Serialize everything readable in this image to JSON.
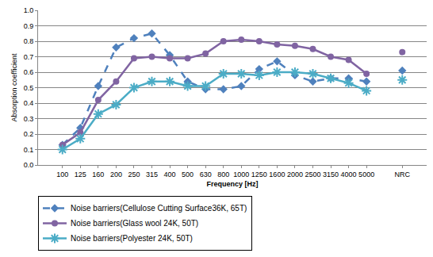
{
  "chart_data": {
    "type": "line",
    "x_label": "Frequency [Hz]",
    "y_label": "Absorption coefficient",
    "categories": [
      "100",
      "125",
      "160",
      "200",
      "250",
      "315",
      "400",
      "500",
      "630",
      "800",
      "1000",
      "1250",
      "1600",
      "2000",
      "2500",
      "3150",
      "4000",
      "5000",
      null,
      "NRC"
    ],
    "series": [
      {
        "name": "Noise barriers(Cellulose Cutting Surface36K, 65T)",
        "color": "#4f81bd",
        "marker": "diamond",
        "line_style": "dashed",
        "values": [
          0.13,
          0.24,
          0.51,
          0.76,
          0.82,
          0.85,
          0.71,
          0.54,
          0.49,
          0.49,
          0.51,
          0.62,
          0.67,
          0.58,
          0.54,
          0.56,
          0.56,
          0.54,
          null,
          0.61
        ]
      },
      {
        "name": "Noise barriers(Glass wool 24K, 50T)",
        "color": "#8064a2",
        "marker": "circle",
        "line_style": "solid",
        "values": [
          0.13,
          0.21,
          0.42,
          0.54,
          0.69,
          0.7,
          0.69,
          0.69,
          0.72,
          0.8,
          0.81,
          0.8,
          0.78,
          0.77,
          0.75,
          0.7,
          0.68,
          0.59,
          null,
          0.73
        ]
      },
      {
        "name": "Noise barriers(Polyester 24K, 50T)",
        "color": "#4bacc6",
        "marker": "asterisk",
        "line_style": "solid",
        "values": [
          0.1,
          0.17,
          0.33,
          0.39,
          0.5,
          0.54,
          0.54,
          0.51,
          0.51,
          0.59,
          0.59,
          0.58,
          0.6,
          0.6,
          0.59,
          0.56,
          0.53,
          0.48,
          null,
          0.55
        ]
      }
    ],
    "ylim": [
      0,
      1
    ],
    "yticks": [
      {
        "value": 0,
        "label": "0.0"
      },
      0.1,
      0.2,
      0.3,
      0.4,
      0.5,
      0.6,
      0.7,
      0.8,
      0.9,
      {
        "value": 1,
        "label": "1.0"
      }
    ],
    "grid": true,
    "legend": "bottom"
  }
}
